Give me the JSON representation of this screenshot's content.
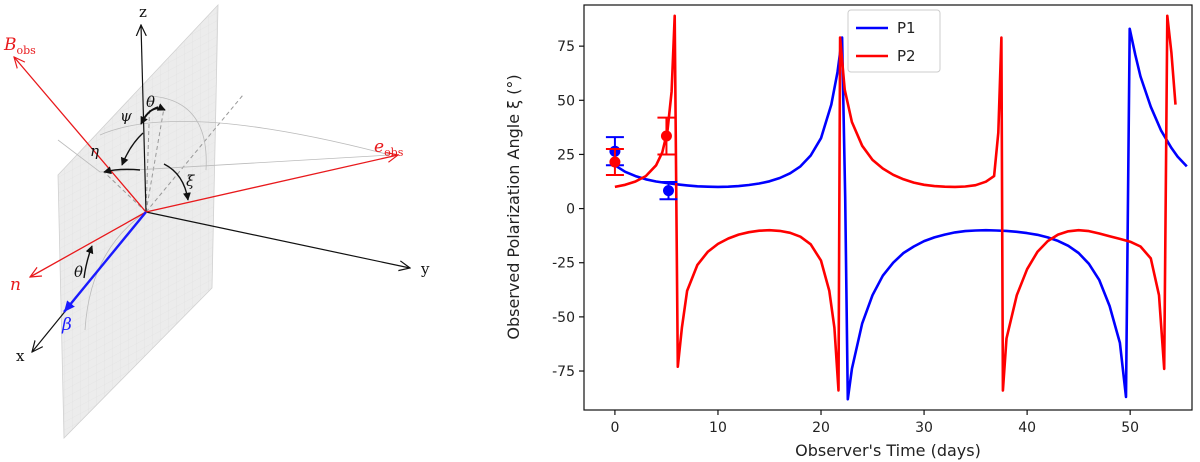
{
  "diagram": {
    "axis_labels": {
      "z": "z",
      "y": "y",
      "x": "x"
    },
    "vector_labels": {
      "b_obs_main": "B",
      "b_obs_sub": "obs",
      "e_obs_main": "e",
      "e_obs_sub": "obs",
      "n": "n",
      "beta": "β"
    },
    "angle_labels": {
      "theta_top": "θ",
      "psi": "ψ",
      "eta": "η",
      "xi": "ξ",
      "theta_bottom": "θ"
    },
    "colors": {
      "red": "#e8191c",
      "blue": "#1a1aff",
      "black": "#111111",
      "plane": "#e6e6e6"
    }
  },
  "chart_data": {
    "type": "line",
    "xlabel": "Observer's Time (days)",
    "ylabel": "Observed Polarization Angle ξ (°)",
    "xlim": [
      -3,
      56
    ],
    "ylim": [
      -93,
      94
    ],
    "xticks": [
      0,
      10,
      20,
      30,
      40,
      50
    ],
    "yticks": [
      -75,
      -50,
      -25,
      0,
      25,
      50,
      75
    ],
    "legend": {
      "position": "top-center",
      "entries": [
        "P1",
        "P2"
      ]
    },
    "series": [
      {
        "name": "P1",
        "color": "#0000ff",
        "points": [
          [
            0,
            20
          ],
          [
            1,
            17
          ],
          [
            2,
            15
          ],
          [
            3,
            13.5
          ],
          [
            4,
            12.5
          ],
          [
            5,
            11.8
          ],
          [
            6,
            11.2
          ],
          [
            7,
            10.7
          ],
          [
            8,
            10.3
          ],
          [
            9,
            10.1
          ],
          [
            10,
            10
          ],
          [
            11,
            10.1
          ],
          [
            12,
            10.4
          ],
          [
            13,
            10.9
          ],
          [
            14,
            11.6
          ],
          [
            15,
            12.6
          ],
          [
            16,
            14.1
          ],
          [
            17,
            16.3
          ],
          [
            18,
            19.5
          ],
          [
            19,
            24.5
          ],
          [
            20,
            32.5
          ],
          [
            21,
            48
          ],
          [
            21.6,
            63
          ],
          [
            22.05,
            79
          ],
          [
            22.35,
            5
          ],
          [
            22.6,
            -88
          ],
          [
            23,
            -74
          ],
          [
            24,
            -53
          ],
          [
            25,
            -40
          ],
          [
            26,
            -31
          ],
          [
            27,
            -25
          ],
          [
            28,
            -20.5
          ],
          [
            29,
            -17.5
          ],
          [
            30,
            -15
          ],
          [
            31,
            -13.3
          ],
          [
            32,
            -12
          ],
          [
            33,
            -11
          ],
          [
            34,
            -10.4
          ],
          [
            35,
            -10.1
          ],
          [
            36,
            -10
          ],
          [
            37,
            -10.1
          ],
          [
            38,
            -10.3
          ],
          [
            39,
            -10.7
          ],
          [
            40,
            -11.3
          ],
          [
            41,
            -12.1
          ],
          [
            42,
            -13.3
          ],
          [
            43,
            -14.9
          ],
          [
            44,
            -17.2
          ],
          [
            45,
            -20.5
          ],
          [
            46,
            -25.5
          ],
          [
            47,
            -33
          ],
          [
            48,
            -45
          ],
          [
            49,
            -62
          ],
          [
            49.6,
            -87
          ],
          [
            49.95,
            83
          ],
          [
            50.5,
            71
          ],
          [
            51,
            61
          ],
          [
            52,
            47
          ],
          [
            53,
            36
          ],
          [
            54,
            28
          ],
          [
            54.6,
            24
          ],
          [
            55.5,
            19.5
          ]
        ]
      },
      {
        "name": "P2",
        "color": "#ff0000",
        "points": [
          [
            0,
            10
          ],
          [
            1,
            11
          ],
          [
            2,
            12.5
          ],
          [
            3,
            15
          ],
          [
            4,
            20
          ],
          [
            4.6,
            26
          ],
          [
            5.1,
            36
          ],
          [
            5.5,
            54
          ],
          [
            5.8,
            89
          ],
          [
            6.1,
            -73
          ],
          [
            6.5,
            -55
          ],
          [
            7,
            -38
          ],
          [
            8,
            -26
          ],
          [
            9,
            -20
          ],
          [
            10,
            -16.3
          ],
          [
            11,
            -13.8
          ],
          [
            12,
            -12
          ],
          [
            13,
            -10.9
          ],
          [
            14,
            -10.2
          ],
          [
            15,
            -10
          ],
          [
            16,
            -10.3
          ],
          [
            17,
            -11.2
          ],
          [
            18,
            -13
          ],
          [
            19,
            -16.5
          ],
          [
            20,
            -24
          ],
          [
            20.8,
            -38
          ],
          [
            21.3,
            -55
          ],
          [
            21.7,
            -84
          ],
          [
            21.85,
            79
          ],
          [
            22.3,
            55
          ],
          [
            23,
            40
          ],
          [
            24,
            29
          ],
          [
            25,
            22.5
          ],
          [
            26,
            18.5
          ],
          [
            27,
            15.6
          ],
          [
            28,
            13.5
          ],
          [
            29,
            12
          ],
          [
            30,
            11
          ],
          [
            31,
            10.4
          ],
          [
            32,
            10.1
          ],
          [
            33,
            10
          ],
          [
            34,
            10.2
          ],
          [
            35,
            10.8
          ],
          [
            36,
            12.4
          ],
          [
            36.8,
            15
          ],
          [
            37.2,
            35
          ],
          [
            37.5,
            79
          ],
          [
            37.65,
            -84
          ],
          [
            38,
            -60
          ],
          [
            39,
            -40
          ],
          [
            40,
            -28
          ],
          [
            41,
            -20
          ],
          [
            42,
            -15
          ],
          [
            43,
            -12
          ],
          [
            44,
            -10.5
          ],
          [
            45,
            -10
          ],
          [
            46,
            -10.4
          ],
          [
            47,
            -11.5
          ],
          [
            48,
            -12.8
          ],
          [
            49,
            -14
          ],
          [
            50,
            -15.3
          ],
          [
            51,
            -17.5
          ],
          [
            52,
            -23
          ],
          [
            52.8,
            -40
          ],
          [
            53.3,
            -74
          ],
          [
            53.5,
            30
          ],
          [
            53.6,
            89
          ],
          [
            54,
            72
          ],
          [
            54.4,
            48
          ]
        ]
      }
    ],
    "points_with_errors": [
      {
        "series": "P1",
        "x": 0,
        "y": 26.5,
        "yerr": 6.5,
        "color": "#0000ff"
      },
      {
        "series": "P2",
        "x": 0,
        "y": 21.5,
        "yerr": 6.0,
        "color": "#ff0000"
      },
      {
        "series": "P2",
        "x": 5,
        "y": 33.5,
        "yerr": 8.5,
        "color": "#ff0000"
      },
      {
        "series": "P1",
        "x": 5.2,
        "y": 8.3,
        "yerr": 4.0,
        "color": "#0000ff"
      }
    ]
  }
}
